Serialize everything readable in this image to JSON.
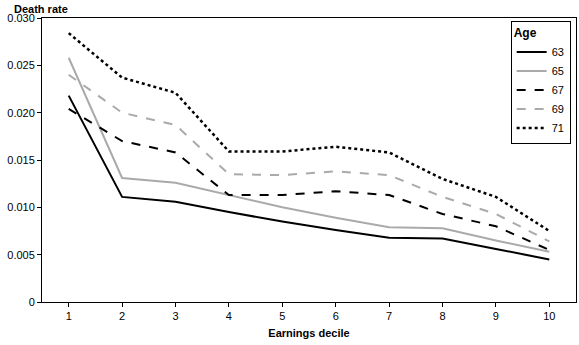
{
  "chart_data": {
    "type": "line",
    "x_label": "Earnings decile",
    "y_label": "Death rate",
    "legend_title": "Age",
    "legend": "top right",
    "grid": false,
    "x": [
      1,
      2,
      3,
      4,
      5,
      6,
      7,
      8,
      9,
      10
    ],
    "xlim": [
      0.5,
      10.5
    ],
    "xticks": [
      1,
      2,
      3,
      4,
      5,
      6,
      7,
      8,
      9,
      10
    ],
    "ylim": [
      0,
      0.03
    ],
    "yticks": [
      0,
      0.005,
      {
        "value": 0.01,
        "label": "0.010"
      },
      0.015,
      {
        "value": 0.02,
        "label": "0.020"
      },
      0.025,
      {
        "value": 0.03,
        "label": "0.030"
      }
    ],
    "series": [
      {
        "name": "63",
        "color": "#000000",
        "line_style": "solid",
        "values": [
          0.0218,
          0.0111,
          0.0106,
          0.0095,
          0.0085,
          0.0076,
          0.0068,
          0.0067,
          0.0056,
          0.0045
        ]
      },
      {
        "name": "65",
        "color": "#aaaaaa",
        "line_style": "solid",
        "values": [
          0.0258,
          0.0131,
          0.0126,
          0.0113,
          0.01,
          0.0089,
          0.0079,
          0.0078,
          0.0065,
          0.0053
        ]
      },
      {
        "name": "67",
        "color": "#000000",
        "line_style": "dashed",
        "values": [
          0.0204,
          0.017,
          0.0158,
          0.0113,
          0.0113,
          0.0117,
          0.0113,
          0.0093,
          0.008,
          0.0055
        ]
      },
      {
        "name": "69",
        "color": "#aaaaaa",
        "line_style": "dashed",
        "values": [
          0.024,
          0.02,
          0.0187,
          0.0135,
          0.0134,
          0.0138,
          0.0134,
          0.0111,
          0.0093,
          0.0064
        ]
      },
      {
        "name": "71",
        "color": "#000000",
        "line_style": "dotted",
        "values": [
          0.0284,
          0.0237,
          0.0221,
          0.0159,
          0.0159,
          0.0164,
          0.0158,
          0.013,
          0.0111,
          0.0075
        ]
      }
    ]
  }
}
